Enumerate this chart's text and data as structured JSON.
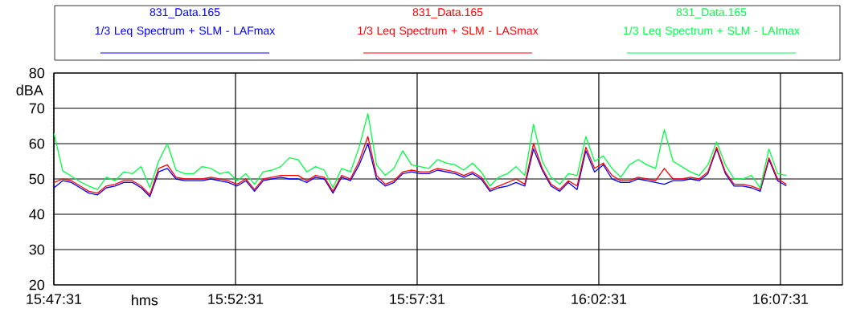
{
  "chart_data": {
    "type": "line",
    "xlabel": "hms",
    "ylabel": "dBA",
    "xlim": [
      15.791944,
      16.1537
    ],
    "ylim": [
      20,
      80
    ],
    "xticks": [
      {
        "value": 15.791944,
        "label": "15:47:31"
      },
      {
        "value": 15.875278,
        "label": "15:52:31"
      },
      {
        "value": 15.958611,
        "label": "15:57:31"
      },
      {
        "value": 16.041944,
        "label": "16:02:31"
      },
      {
        "value": 16.125278,
        "label": "16:07:31"
      }
    ],
    "yticks": [
      20,
      30,
      40,
      50,
      60,
      70,
      80
    ],
    "grid": true,
    "legend": "top",
    "marker": "none",
    "line_style": "solid",
    "x": [
      15.792,
      15.796,
      15.8,
      15.804,
      15.808,
      15.812,
      15.816,
      15.82,
      15.824,
      15.828,
      15.832,
      15.836,
      15.84,
      15.844,
      15.848,
      15.852,
      15.856,
      15.86,
      15.864,
      15.868,
      15.872,
      15.876,
      15.88,
      15.884,
      15.888,
      15.892,
      15.896,
      15.9,
      15.904,
      15.908,
      15.912,
      15.916,
      15.92,
      15.924,
      15.928,
      15.932,
      15.936,
      15.94,
      15.944,
      15.948,
      15.952,
      15.956,
      15.96,
      15.964,
      15.968,
      15.972,
      15.976,
      15.98,
      15.984,
      15.988,
      15.992,
      15.996,
      16.0,
      16.004,
      16.008,
      16.012,
      16.016,
      16.02,
      16.024,
      16.028,
      16.032,
      16.036,
      16.04,
      16.044,
      16.048,
      16.052,
      16.056,
      16.06,
      16.064,
      16.068,
      16.072,
      16.076,
      16.08,
      16.084,
      16.088,
      16.092,
      16.096,
      16.1,
      16.104,
      16.108,
      16.112,
      16.116,
      16.12,
      16.124,
      16.128
    ],
    "series": [
      {
        "name": "831_Data.165\n1/3 Leq Spectrum + SLM - LAFmax",
        "color": "#0000ff",
        "values": [
          47.5,
          49.5,
          49,
          47.5,
          46,
          45.5,
          47.5,
          48,
          49,
          49,
          47.5,
          45,
          52,
          53,
          50,
          49.5,
          49.5,
          49.5,
          50,
          49.5,
          49,
          48,
          49.5,
          46.5,
          49.5,
          50,
          50.5,
          50,
          50,
          49,
          50.5,
          50,
          46,
          50.5,
          49.5,
          54,
          60,
          50,
          48,
          49,
          51.5,
          52,
          51.5,
          51.5,
          52.5,
          52,
          51.5,
          50.5,
          51.5,
          50,
          46.5,
          47.5,
          48,
          49,
          48,
          58.5,
          52.5,
          48,
          46.5,
          49,
          47,
          58,
          52,
          54,
          50,
          49,
          49,
          50,
          49.5,
          49,
          48.5,
          49.5,
          49.5,
          50,
          49.5,
          51.5,
          58.5,
          51.5,
          48,
          48,
          47.5,
          46.5,
          55.5,
          49.5,
          48
        ]
      },
      {
        "name": "831_Data.165\n1/3 Leq Spectrum + SLM - LASmax",
        "color": "#ff0000",
        "values": [
          49,
          50,
          49.5,
          48,
          46.5,
          46,
          48,
          48.5,
          49.5,
          49.5,
          48,
          45.5,
          53,
          54,
          50.5,
          50,
          50,
          50,
          50.5,
          50,
          49.5,
          48.5,
          50,
          47,
          50,
          50.5,
          51,
          51,
          51,
          49.5,
          51,
          50.5,
          46.5,
          51,
          50,
          55,
          62,
          51,
          48.5,
          49.5,
          52,
          52.5,
          52,
          52,
          53,
          52.5,
          52,
          51,
          52,
          50.5,
          47,
          48,
          49,
          50,
          48.5,
          60,
          53,
          48.5,
          47,
          49.5,
          48,
          59,
          53,
          54.5,
          51,
          49.5,
          49.5,
          50.5,
          50,
          49.5,
          53,
          50,
          50,
          50.5,
          50,
          52,
          59,
          52,
          48.5,
          48.5,
          48,
          47,
          56,
          50,
          48.5
        ]
      },
      {
        "name": "831_Data.165\n1/3 Leq Spectrum + SLM - LAImax",
        "color": "#00ff44",
        "values": [
          63,
          52.3,
          50.8,
          49.2,
          48,
          47,
          50.5,
          49.5,
          52,
          51.5,
          53.5,
          47.5,
          55,
          60,
          52.5,
          51.5,
          51.5,
          53.5,
          53,
          51.5,
          52,
          49.5,
          51.5,
          48.5,
          52,
          52.5,
          53.5,
          56,
          55.5,
          52,
          53.5,
          52.5,
          47.5,
          53,
          52,
          59,
          68.5,
          54,
          51,
          53,
          58,
          54,
          53.5,
          53,
          55.5,
          54.5,
          54,
          52.5,
          54.5,
          52,
          48,
          50.5,
          51.5,
          53.5,
          51,
          65.5,
          55,
          50.5,
          48.5,
          51.5,
          51,
          62,
          55,
          56.5,
          53,
          50.5,
          54,
          55.5,
          54,
          53,
          64,
          55,
          53.5,
          52,
          51,
          54,
          60.5,
          54,
          50,
          50,
          51,
          47.5,
          58.5,
          51.5,
          51
        ]
      }
    ]
  }
}
